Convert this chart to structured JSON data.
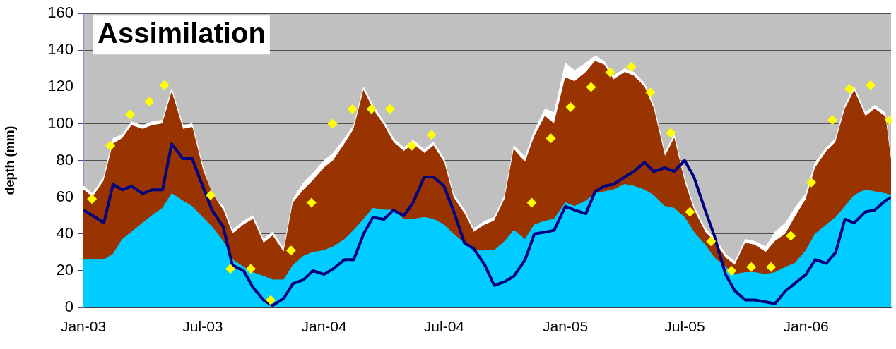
{
  "chart_data": {
    "type": "area",
    "title": "Assimilation",
    "ylabel": "depth (mm)",
    "x": [
      "2003-01-01",
      "2003-01-15",
      "2003-02-01",
      "2003-02-15",
      "2003-03-01",
      "2003-03-15",
      "2003-04-01",
      "2003-04-15",
      "2003-05-01",
      "2003-05-15",
      "2003-06-01",
      "2003-06-15",
      "2003-07-01",
      "2003-07-15",
      "2003-08-01",
      "2003-08-15",
      "2003-09-01",
      "2003-09-15",
      "2003-10-01",
      "2003-10-15",
      "2003-11-01",
      "2003-11-15",
      "2003-12-01",
      "2003-12-15",
      "2004-01-01",
      "2004-01-15",
      "2004-02-01",
      "2004-02-15",
      "2004-03-01",
      "2004-03-15",
      "2004-04-01",
      "2004-04-15",
      "2004-05-01",
      "2004-05-15",
      "2004-06-01",
      "2004-06-15",
      "2004-07-01",
      "2004-07-15",
      "2004-08-01",
      "2004-08-15",
      "2004-09-01",
      "2004-09-15",
      "2004-10-01",
      "2004-10-15",
      "2004-11-01",
      "2004-11-15",
      "2004-12-01",
      "2004-12-15",
      "2005-01-01",
      "2005-01-15",
      "2005-02-01",
      "2005-02-15",
      "2005-03-01",
      "2005-03-15",
      "2005-04-01",
      "2005-04-15",
      "2005-05-01",
      "2005-05-15",
      "2005-06-01",
      "2005-06-15",
      "2005-07-01",
      "2005-07-15",
      "2005-08-01",
      "2005-08-15",
      "2005-09-01",
      "2005-09-15",
      "2005-10-01",
      "2005-10-15",
      "2005-11-01",
      "2005-11-15",
      "2005-12-01",
      "2005-12-15",
      "2006-01-01",
      "2006-01-15",
      "2006-02-01",
      "2006-02-15",
      "2006-03-01",
      "2006-03-15",
      "2006-04-01",
      "2006-04-15",
      "2006-05-01",
      "2006-05-10"
    ],
    "series": [
      {
        "type": "area",
        "color": "#ffffff",
        "values": [
          66,
          62,
          71,
          92,
          94,
          101,
          99,
          101,
          102,
          119,
          99,
          100,
          77,
          61,
          55,
          42,
          47,
          50,
          37,
          41,
          32,
          59,
          68,
          73,
          80,
          84,
          92,
          99,
          120,
          110,
          101,
          92,
          87,
          91,
          86,
          90,
          81,
          62,
          53,
          43,
          47,
          49,
          61,
          88,
          82,
          96,
          108,
          106,
          133,
          129,
          133,
          137,
          134,
          126,
          130,
          128,
          122,
          110,
          84,
          94,
          70,
          55,
          43,
          38,
          29,
          25,
          37,
          36,
          33,
          41,
          46,
          54,
          62,
          79,
          87,
          92,
          110,
          120,
          106,
          110,
          106,
          81
        ]
      },
      {
        "type": "area",
        "color": "#993300",
        "values": [
          64,
          60,
          69,
          89,
          92,
          99,
          97,
          99,
          100,
          117,
          97,
          98,
          75,
          62,
          53,
          40,
          45,
          48,
          35,
          39,
          30,
          57,
          64,
          69,
          76,
          80,
          89,
          97,
          118,
          108,
          99,
          90,
          85,
          89,
          84,
          88,
          79,
          60,
          51,
          41,
          45,
          47,
          59,
          86,
          79,
          93,
          104,
          100,
          125,
          123,
          128,
          134,
          132,
          124,
          128,
          126,
          120,
          108,
          82,
          92,
          68,
          53,
          41,
          36,
          27,
          23,
          35,
          34,
          30,
          36,
          40,
          49,
          59,
          76,
          85,
          90,
          108,
          118,
          104,
          108,
          104,
          79
        ]
      },
      {
        "type": "area",
        "color": "#00ccff",
        "values": [
          26,
          26,
          26,
          29,
          37,
          41,
          46,
          50,
          54,
          62,
          58,
          55,
          49,
          44,
          36,
          26,
          22,
          19,
          17,
          15,
          15,
          23,
          28,
          30,
          31,
          33,
          37,
          42,
          48,
          54,
          53,
          53,
          48,
          48,
          49,
          48,
          45,
          40,
          35,
          31,
          31,
          31,
          36,
          42,
          37,
          45,
          47,
          48,
          57,
          55,
          58,
          62,
          63,
          64,
          67,
          66,
          64,
          61,
          55,
          54,
          49,
          41,
          34,
          27,
          22,
          18,
          19,
          19,
          18,
          19,
          22,
          24,
          31,
          40,
          45,
          49,
          55,
          61,
          64,
          63,
          62,
          61
        ]
      },
      {
        "type": "line",
        "color": "#000080",
        "values": [
          53,
          50,
          46,
          67,
          64,
          66,
          62,
          64,
          64,
          89,
          81,
          81,
          66,
          53,
          44,
          23,
          20,
          11,
          4,
          1,
          5,
          13,
          15,
          20,
          18,
          21,
          26,
          26,
          40,
          49,
          48,
          53,
          50,
          57,
          71,
          71,
          66,
          53,
          35,
          32,
          23,
          12,
          14,
          17,
          26,
          40,
          41,
          42,
          55,
          53,
          51,
          63,
          66,
          67,
          71,
          74,
          79,
          74,
          76,
          74,
          80,
          71,
          53,
          39,
          18,
          9,
          4,
          4,
          3,
          2,
          9,
          13,
          18,
          26,
          24,
          30,
          48,
          46,
          52,
          53,
          58,
          60
        ]
      },
      {
        "type": "scatter",
        "color": "#ffff00",
        "marker": "diamond",
        "x": [
          "2003-01-14",
          "2003-02-11",
          "2003-03-13",
          "2003-04-11",
          "2003-05-04",
          "2003-07-13",
          "2003-08-12",
          "2003-09-12",
          "2003-10-12",
          "2003-11-12",
          "2003-12-13",
          "2004-01-14",
          "2004-02-13",
          "2004-03-13",
          "2004-04-10",
          "2004-05-13",
          "2004-06-12",
          "2004-11-11",
          "2004-12-10",
          "2005-01-09",
          "2005-02-09",
          "2005-03-10",
          "2005-04-11",
          "2005-05-10",
          "2005-06-10",
          "2005-07-09",
          "2005-08-10",
          "2005-09-10",
          "2005-10-10",
          "2005-11-09",
          "2005-12-09",
          "2006-01-09",
          "2006-02-10",
          "2006-03-08",
          "2006-04-09",
          "2006-05-08"
        ],
        "values": [
          59,
          88,
          105,
          112,
          121,
          61,
          21,
          21,
          4,
          31,
          57,
          100,
          108,
          108,
          108,
          88,
          94,
          57,
          92,
          109,
          120,
          128,
          131,
          117,
          95,
          52,
          36,
          20,
          22,
          22,
          39,
          68,
          102,
          119,
          121,
          102
        ]
      }
    ],
    "xlim": [
      "2003-01-01",
      "2006-05-10"
    ],
    "xticks": [
      {
        "value": "2003-01-01",
        "label": "Jan-03"
      },
      {
        "value": "2003-07-01",
        "label": "Jul-03"
      },
      {
        "value": "2004-01-01",
        "label": "Jan-04"
      },
      {
        "value": "2004-07-01",
        "label": "Jul-04"
      },
      {
        "value": "2005-01-01",
        "label": "Jan-05"
      },
      {
        "value": "2005-07-01",
        "label": "Jul-05"
      },
      {
        "value": "2006-01-01",
        "label": "Jan-06"
      }
    ],
    "ylim": [
      0,
      160
    ],
    "yticks": [
      0,
      20,
      40,
      60,
      80,
      100,
      120,
      140,
      160
    ],
    "grid": "y"
  }
}
